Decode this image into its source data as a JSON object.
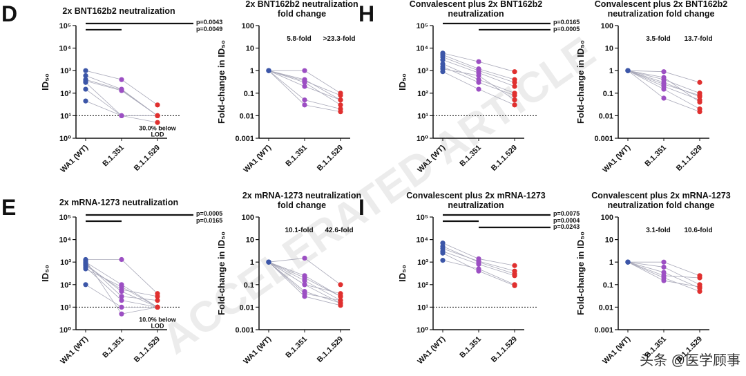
{
  "chart_data": [
    {
      "type": "paired-dot",
      "panel_label": "D",
      "title": [
        "2x BNT162b2 neutralization"
      ],
      "y_label": "ID₅₀",
      "categories": [
        "WA1 (WT)",
        "B.1.351",
        "B.1.1.529"
      ],
      "colors": [
        "#3c56a8",
        "#9c4fc3",
        "#e0302f"
      ],
      "log": true,
      "ylim": [
        1,
        100000
      ],
      "yticks": [
        {
          "value": 1,
          "label": "10⁰"
        },
        {
          "value": 10,
          "label": "10¹"
        },
        {
          "value": 100,
          "label": "10²"
        },
        {
          "value": 1000,
          "label": "10³"
        },
        {
          "value": 10000,
          "label": "10⁴"
        },
        {
          "value": 100000,
          "label": "10⁵"
        }
      ],
      "lod": 10,
      "p_values": [
        "p=0.0043",
        "p=0.0049"
      ],
      "note": [
        "30.0% below",
        "LOD"
      ],
      "series": [
        {
          "values": [
            1000,
            400,
            30
          ]
        },
        {
          "values": [
            600,
            150,
            10
          ]
        },
        {
          "values": [
            350,
            130,
            10
          ]
        },
        {
          "values": [
            300,
            10,
            5
          ]
        },
        {
          "values": [
            150,
            10,
            10
          ]
        },
        {
          "values": [
            45,
            10,
            10
          ]
        },
        {
          "values": [
            400,
            140,
            10
          ]
        }
      ]
    },
    {
      "type": "paired-dot",
      "title": [
        "2x BNT162b2 neutralization",
        "fold change"
      ],
      "y_label": "Fold-change in ID₅₀",
      "categories": [
        "WA1 (WT)",
        "B.1.351",
        "B.1.1.529"
      ],
      "colors": [
        "#3c56a8",
        "#9c4fc3",
        "#e0302f"
      ],
      "log": true,
      "ylim": [
        0.001,
        100
      ],
      "yticks": [
        0.001,
        0.01,
        0.1,
        1,
        10,
        100
      ],
      "fold_labels": [
        "5.8-fold",
        ">23.3-fold"
      ],
      "series": [
        {
          "values": [
            1,
            1,
            0.1
          ]
        },
        {
          "values": [
            1,
            0.4,
            0.05
          ]
        },
        {
          "values": [
            1,
            0.3,
            0.03
          ]
        },
        {
          "values": [
            1,
            0.05,
            0.02
          ]
        },
        {
          "values": [
            1,
            0.03,
            0.015
          ]
        },
        {
          "values": [
            1,
            0.2,
            0.05
          ]
        },
        {
          "values": [
            1,
            0.35,
            0.08
          ]
        }
      ]
    },
    {
      "type": "paired-dot",
      "panel_label": "H",
      "title": [
        "Convalescent plus 2x BNT162b2",
        "neutralization"
      ],
      "y_label": "ID₅₀",
      "categories": [
        "WA1 (WT)",
        "B.1.351",
        "B.1.1.529"
      ],
      "colors": [
        "#3c56a8",
        "#9c4fc3",
        "#e0302f"
      ],
      "log": true,
      "ylim": [
        1,
        100000
      ],
      "yticks": [
        {
          "value": 1,
          "label": "10⁰"
        },
        {
          "value": 10,
          "label": "10¹"
        },
        {
          "value": 100,
          "label": "10²"
        },
        {
          "value": 1000,
          "label": "10³"
        },
        {
          "value": 10000,
          "label": "10⁴"
        },
        {
          "value": 100000,
          "label": "10⁵"
        }
      ],
      "lod": 10,
      "p_values": [
        "p=0.0165",
        "p=0.0005"
      ],
      "series": [
        {
          "values": [
            6000,
            2500,
            900
          ]
        },
        {
          "values": [
            4000,
            1000,
            300
          ]
        },
        {
          "values": [
            3000,
            800,
            200
          ]
        },
        {
          "values": [
            2000,
            400,
            100
          ]
        },
        {
          "values": [
            1500,
            300,
            80
          ]
        },
        {
          "values": [
            900,
            150,
            30
          ]
        },
        {
          "values": [
            1200,
            600,
            50
          ]
        },
        {
          "values": [
            5000,
            1200,
            400
          ]
        }
      ]
    },
    {
      "type": "paired-dot",
      "title": [
        "Convalescent plus 2x BNT162b2",
        "neutralization fold change"
      ],
      "y_label": "Fold-change in ID₅₀",
      "categories": [
        "WA1 (WT)",
        "B.1.351",
        "B.1.1.529"
      ],
      "colors": [
        "#3c56a8",
        "#9c4fc3",
        "#e0302f"
      ],
      "log": true,
      "ylim": [
        0.001,
        100
      ],
      "yticks": [
        0.001,
        0.01,
        0.1,
        1,
        10,
        100
      ],
      "fold_labels": [
        "3.5-fold",
        "13.7-fold"
      ],
      "series": [
        {
          "values": [
            1,
            0.9,
            0.3
          ]
        },
        {
          "values": [
            1,
            0.4,
            0.1
          ]
        },
        {
          "values": [
            1,
            0.3,
            0.07
          ]
        },
        {
          "values": [
            1,
            0.2,
            0.05
          ]
        },
        {
          "values": [
            1,
            0.15,
            0.02
          ]
        },
        {
          "values": [
            1,
            0.06,
            0.015
          ]
        },
        {
          "values": [
            1,
            0.5,
            0.04
          ]
        },
        {
          "values": [
            1,
            0.25,
            0.08
          ]
        }
      ]
    },
    {
      "type": "paired-dot",
      "panel_label": "E",
      "title": [
        "2x mRNA-1273 neutralization"
      ],
      "y_label": "ID₅₀",
      "categories": [
        "WA1 (WT)",
        "B.1.351",
        "B.1.1.529"
      ],
      "colors": [
        "#3c56a8",
        "#9c4fc3",
        "#e0302f"
      ],
      "log": true,
      "ylim": [
        1,
        100000
      ],
      "yticks": [
        {
          "value": 1,
          "label": "10⁰"
        },
        {
          "value": 10,
          "label": "10¹"
        },
        {
          "value": 100,
          "label": "10²"
        },
        {
          "value": 1000,
          "label": "10³"
        },
        {
          "value": 10000,
          "label": "10⁴"
        },
        {
          "value": 100000,
          "label": "10⁵"
        }
      ],
      "lod": 10,
      "p_values": [
        "p=0.0005",
        "p=0.0165"
      ],
      "note": [
        "10.0% below",
        "LOD"
      ],
      "series": [
        {
          "values": [
            1300,
            1300,
            40
          ]
        },
        {
          "values": [
            1000,
            100,
            10
          ]
        },
        {
          "values": [
            800,
            50,
            10
          ]
        },
        {
          "values": [
            600,
            20,
            10
          ]
        },
        {
          "values": [
            100,
            10,
            10
          ]
        },
        {
          "values": [
            1200,
            5,
            10
          ]
        },
        {
          "values": [
            700,
            60,
            30
          ]
        },
        {
          "values": [
            900,
            30,
            20
          ]
        },
        {
          "values": [
            500,
            80,
            10
          ]
        }
      ]
    },
    {
      "type": "paired-dot",
      "title": [
        "2x mRNA-1273 neutralization",
        "fold change"
      ],
      "y_label": "Fold-change in ID₅₀",
      "categories": [
        "WA1 (WT)",
        "B.1.351",
        "B.1.1.529"
      ],
      "colors": [
        "#3c56a8",
        "#9c4fc3",
        "#e0302f"
      ],
      "log": true,
      "ylim": [
        0.001,
        100
      ],
      "yticks": [
        0.001,
        0.01,
        0.1,
        1,
        10,
        100
      ],
      "fold_labels": [
        "10.1-fold",
        "42.6-fold"
      ],
      "series": [
        {
          "values": [
            1,
            1.5,
            0.1
          ]
        },
        {
          "values": [
            1,
            0.2,
            0.03
          ]
        },
        {
          "values": [
            1,
            0.15,
            0.02
          ]
        },
        {
          "values": [
            1,
            0.05,
            0.015
          ]
        },
        {
          "values": [
            1,
            0.03,
            0.012
          ]
        },
        {
          "values": [
            1,
            0.1,
            0.04
          ]
        },
        {
          "values": [
            1,
            0.25,
            0.03
          ]
        },
        {
          "values": [
            1,
            0.04,
            0.02
          ]
        },
        {
          "values": [
            1,
            0.1,
            0.015
          ]
        }
      ]
    },
    {
      "type": "paired-dot",
      "panel_label": "I",
      "title": [
        "Convalescent plus 2x mRNA-1273",
        "neutralization"
      ],
      "y_label": "ID₅₀",
      "categories": [
        "WA1 (WT)",
        "B.1.351",
        "B.1.1.529"
      ],
      "colors": [
        "#3c56a8",
        "#9c4fc3",
        "#e0302f"
      ],
      "log": true,
      "ylim": [
        1,
        100000
      ],
      "yticks": [
        {
          "value": 1,
          "label": "10⁰"
        },
        {
          "value": 10,
          "label": "10¹"
        },
        {
          "value": 100,
          "label": "10²"
        },
        {
          "value": 1000,
          "label": "10³"
        },
        {
          "value": 10000,
          "label": "10⁴"
        },
        {
          "value": 100000,
          "label": "10⁵"
        }
      ],
      "lod": 10,
      "p_values": [
        "p=0.0075",
        "p=0.0004",
        "p=0.0243"
      ],
      "series": [
        {
          "values": [
            7000,
            1400,
            700
          ]
        },
        {
          "values": [
            5000,
            1000,
            300
          ]
        },
        {
          "values": [
            3000,
            800,
            250
          ]
        },
        {
          "values": [
            1200,
            500,
            100
          ]
        },
        {
          "values": [
            2500,
            400,
            90
          ]
        },
        {
          "values": [
            4000,
            1100,
            400
          ]
        }
      ]
    },
    {
      "type": "paired-dot",
      "title": [
        "Convalescent plus 2x mRNA-1273",
        "neutralization fold change"
      ],
      "y_label": "Fold-change in ID₅₀",
      "categories": [
        "WA1 (WT)",
        "B.1.351",
        "B.1.1.529"
      ],
      "colors": [
        "#3c56a8",
        "#9c4fc3",
        "#e0302f"
      ],
      "log": true,
      "ylim": [
        0.001,
        100
      ],
      "yticks": [
        0.001,
        0.01,
        0.1,
        1,
        10,
        100
      ],
      "fold_labels": [
        "3.1-fold",
        "10.6-fold"
      ],
      "series": [
        {
          "values": [
            1,
            1,
            0.25
          ]
        },
        {
          "values": [
            1,
            0.6,
            0.1
          ]
        },
        {
          "values": [
            1,
            0.35,
            0.07
          ]
        },
        {
          "values": [
            1,
            0.2,
            0.05
          ]
        },
        {
          "values": [
            1,
            0.15,
            0.08
          ]
        },
        {
          "values": [
            1,
            0.25,
            0.2
          ]
        }
      ]
    }
  ],
  "watermark": "ACCELERATED ARTICLE",
  "credit": "头条 @医学顾事"
}
